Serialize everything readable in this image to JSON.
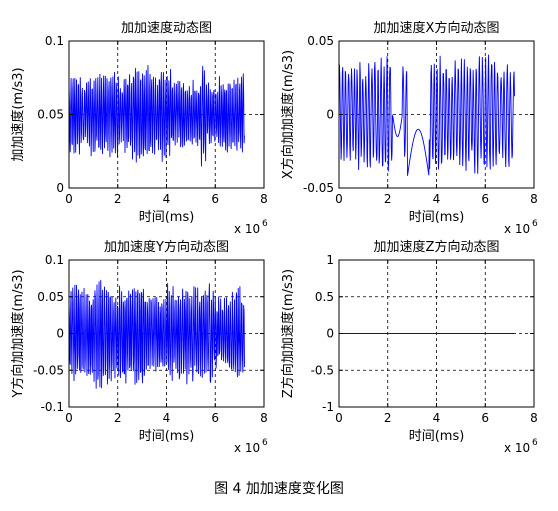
{
  "figure_caption": "图 4  加加速度变化图",
  "chart_data": [
    {
      "type": "line",
      "title": "加加速度动态图",
      "xlabel": "时间(ms)",
      "ylabel": "加加速度(m/s3)",
      "x_exponent_base": "x 10",
      "x_exponent_power": "6",
      "xlim": [
        0,
        8
      ],
      "ylim": [
        0,
        0.1
      ],
      "xticks": [
        0,
        2,
        4,
        6,
        8
      ],
      "xtick_labels": [
        "0",
        "2",
        "4",
        "6",
        "8"
      ],
      "yticks": [
        0,
        0.05,
        0.1
      ],
      "ytick_labels": [
        "0",
        "0.05",
        "0.1"
      ],
      "grid": true,
      "color": "#0000ff",
      "series": [
        {
          "x_range": [
            0,
            7.2
          ],
          "n_points": 420,
          "center": 0.05,
          "amplitude_range": [
            0.02,
            0.037
          ],
          "cycles_per_unit": 13
        }
      ]
    },
    {
      "type": "line",
      "title": "加加速度X方向动态图",
      "xlabel": "时间(ms)",
      "ylabel": "X方向加加速度(m/s3)",
      "x_exponent_base": "x 10",
      "x_exponent_power": "6",
      "xlim": [
        0,
        8
      ],
      "ylim": [
        -0.05,
        0.05
      ],
      "xticks": [
        0,
        2,
        4,
        6,
        8
      ],
      "xtick_labels": [
        "0",
        "2",
        "4",
        "6",
        "8"
      ],
      "yticks": [
        -0.05,
        0,
        0.05
      ],
      "ytick_labels": [
        "-0.05",
        "0",
        "0.05"
      ],
      "grid": true,
      "color": "#0000ff",
      "series": [
        {
          "x_range": [
            0,
            7.2
          ],
          "n_points": 420,
          "center": 0,
          "amplitude_range": [
            0.03,
            0.043
          ],
          "cycles_per_unit": 8,
          "smooth_segments": [
            {
              "from": 2.2,
              "to": 2.6,
              "shape": "dip",
              "low": -0.015
            },
            {
              "from": 2.8,
              "to": 3.7,
              "shape": "arch",
              "base": -0.043,
              "peak": -0.01
            }
          ]
        }
      ]
    },
    {
      "type": "line",
      "title": "加加速度Y方向动态图",
      "xlabel": "时间(ms)",
      "ylabel": "Y方向加加速度(m/s3)",
      "x_exponent_base": "x 10",
      "x_exponent_power": "6",
      "xlim": [
        0,
        8
      ],
      "ylim": [
        -0.1,
        0.1
      ],
      "xticks": [
        0,
        2,
        4,
        6,
        8
      ],
      "xtick_labels": [
        "0",
        "2",
        "4",
        "6",
        "8"
      ],
      "yticks": [
        -0.1,
        -0.05,
        0,
        0.05,
        0.1
      ],
      "ytick_labels": [
        "-0.1",
        "-0.05",
        "0",
        "0.05",
        "0.1"
      ],
      "grid": true,
      "color": "#0000ff",
      "series": [
        {
          "x_range": [
            0,
            7.2
          ],
          "n_points": 420,
          "center": 0,
          "amplitude_range": [
            0.05,
            0.08
          ],
          "cycles_per_unit": 13
        }
      ]
    },
    {
      "type": "line",
      "title": "加加速度Z方向动态图",
      "xlabel": "时间(ms)",
      "ylabel": "Z方向加加速度(m/s3)",
      "x_exponent_base": "x 10",
      "x_exponent_power": "6",
      "xlim": [
        0,
        8
      ],
      "ylim": [
        -1,
        1
      ],
      "xticks": [
        0,
        2,
        4,
        6,
        8
      ],
      "xtick_labels": [
        "0",
        "2",
        "4",
        "6",
        "8"
      ],
      "yticks": [
        -1,
        -0.5,
        0,
        0.5,
        1
      ],
      "ytick_labels": [
        "-1",
        "-0.5",
        "0",
        "0.5",
        "1"
      ],
      "grid": true,
      "color": "#0000ff",
      "series": [
        {
          "x": [
            0,
            7.2
          ],
          "y": [
            0,
            0
          ]
        }
      ]
    }
  ]
}
